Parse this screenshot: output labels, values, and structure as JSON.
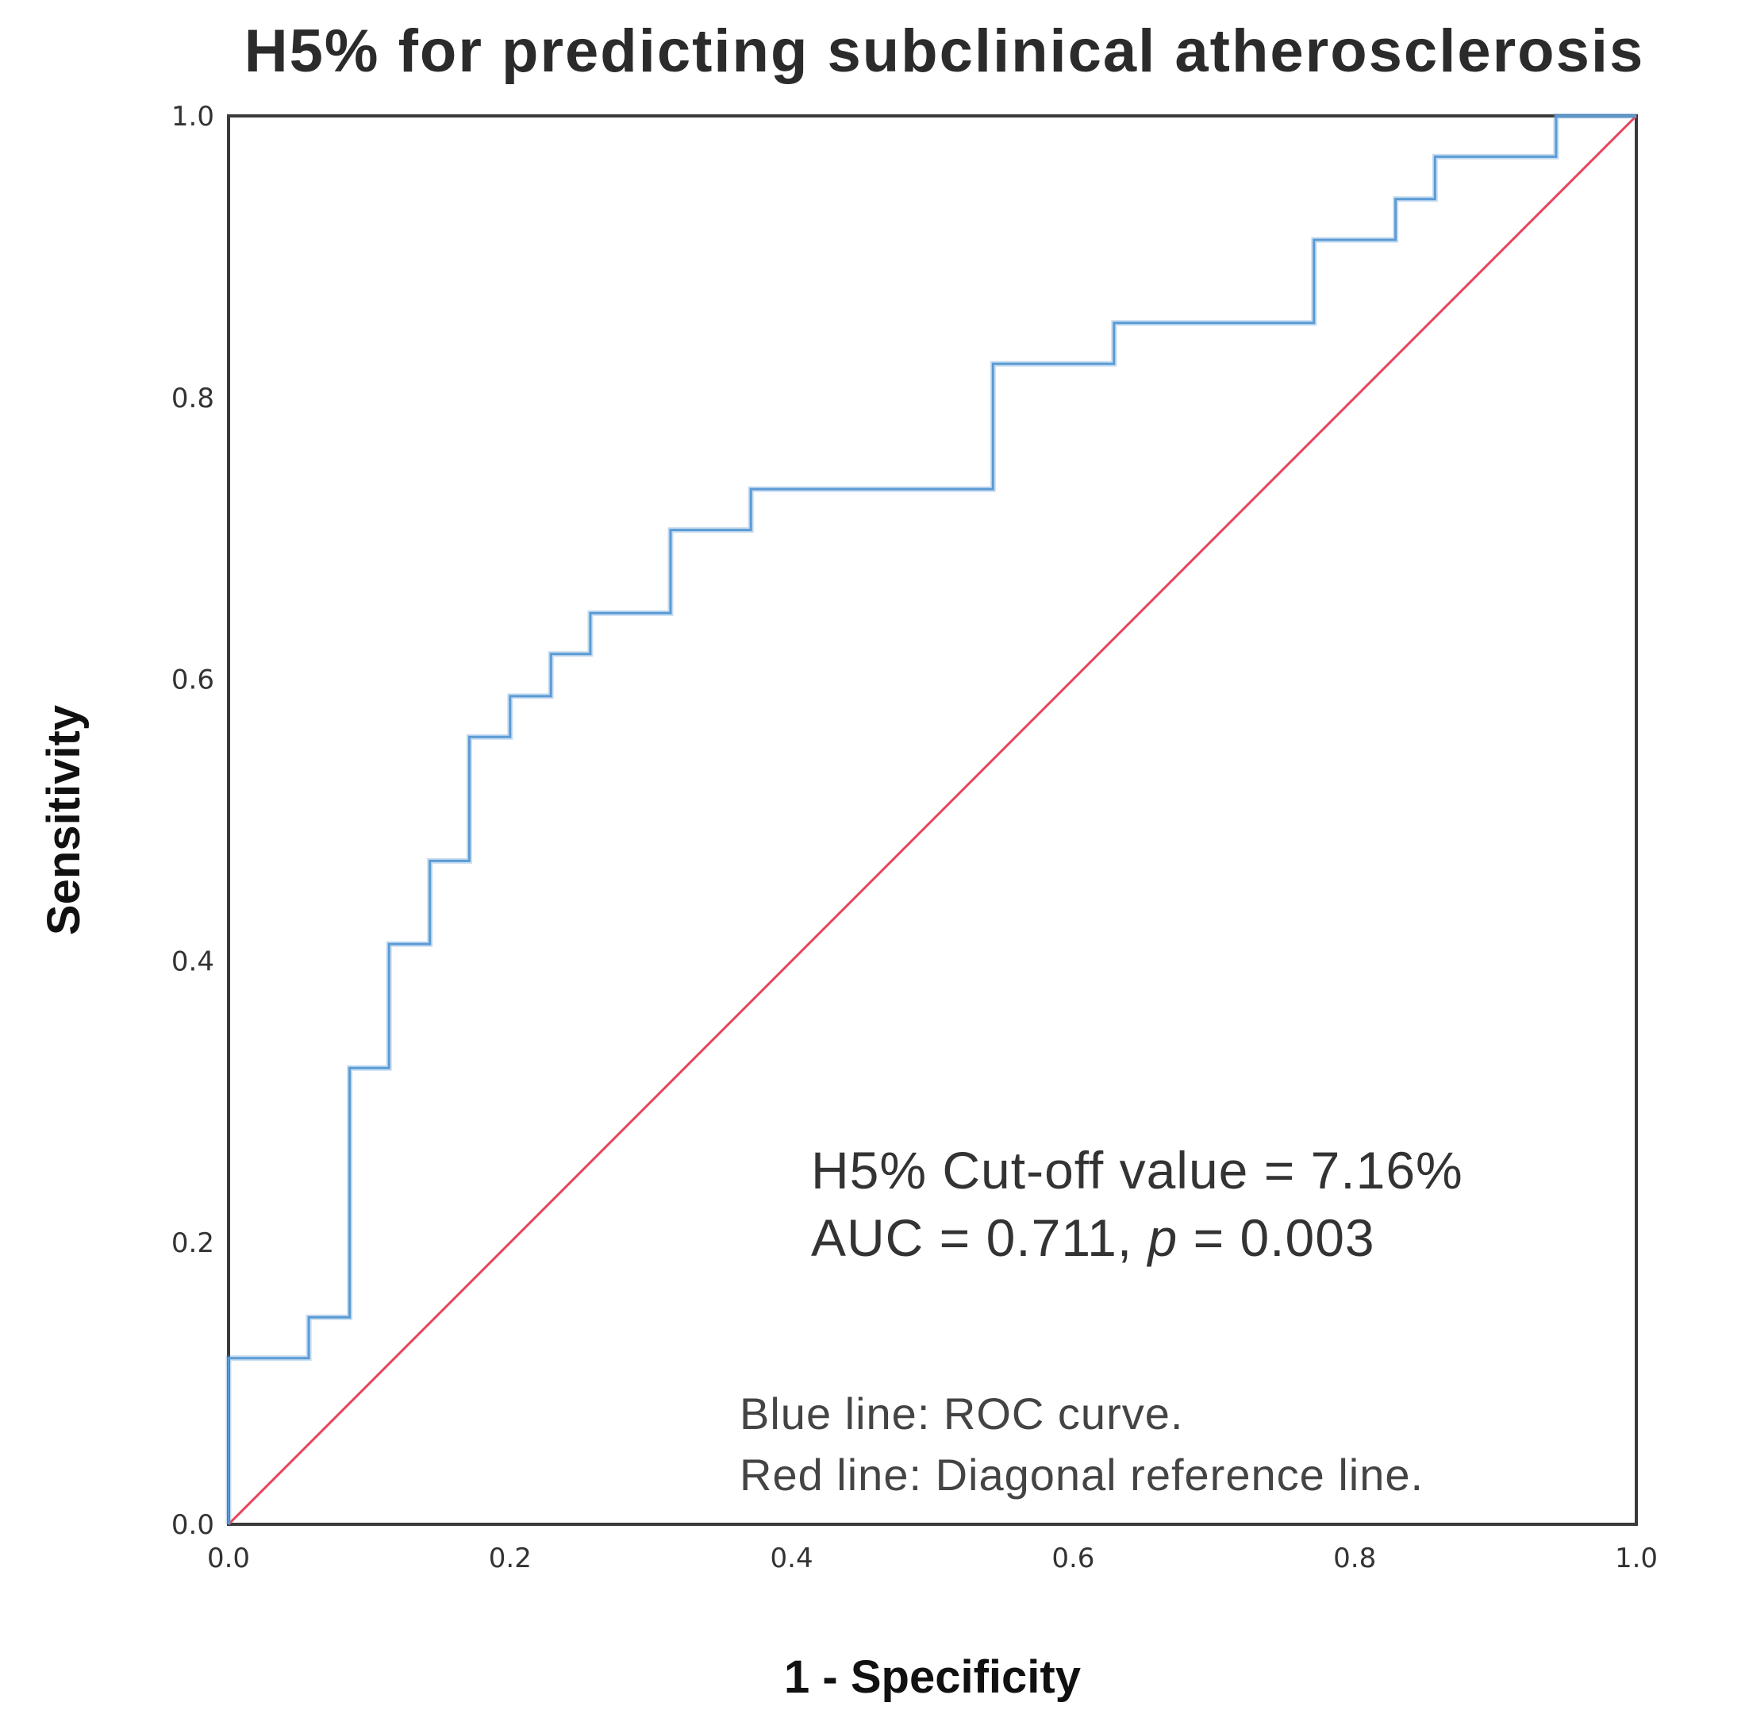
{
  "chart_data": {
    "type": "line",
    "title": "H5% for predicting subclinical atherosclerosis",
    "xlabel": "1 - Specificity",
    "ylabel": "Sensitivity",
    "xlim": [
      0.0,
      1.0
    ],
    "ylim": [
      0.0,
      1.0
    ],
    "xticks": [
      "0.0",
      "0.2",
      "0.4",
      "0.6",
      "0.8",
      "1.0"
    ],
    "yticks": [
      "0.0",
      "0.2",
      "0.4",
      "0.6",
      "0.8",
      "1.0"
    ],
    "grid": false,
    "series": [
      {
        "name": "ROC curve",
        "color": "#5b9bd5",
        "step": true,
        "x": [
          0.0,
          0.0,
          0.057,
          0.057,
          0.086,
          0.086,
          0.114,
          0.114,
          0.143,
          0.143,
          0.171,
          0.171,
          0.2,
          0.2,
          0.229,
          0.229,
          0.257,
          0.257,
          0.314,
          0.314,
          0.371,
          0.371,
          0.543,
          0.543,
          0.629,
          0.629,
          0.771,
          0.771,
          0.829,
          0.829,
          0.857,
          0.857,
          0.943,
          0.943,
          1.0
        ],
        "y": [
          0.0,
          0.118,
          0.118,
          0.147,
          0.147,
          0.324,
          0.324,
          0.412,
          0.412,
          0.471,
          0.471,
          0.559,
          0.559,
          0.588,
          0.588,
          0.618,
          0.618,
          0.647,
          0.647,
          0.706,
          0.706,
          0.735,
          0.735,
          0.824,
          0.824,
          0.853,
          0.853,
          0.912,
          0.912,
          0.941,
          0.941,
          0.971,
          0.971,
          1.0,
          1.0
        ]
      },
      {
        "name": "Diagonal reference line",
        "color": "#e8435c",
        "x": [
          0.0,
          1.0
        ],
        "y": [
          0.0,
          1.0
        ]
      }
    ],
    "annotations": {
      "cutoff": "H5% Cut-off value = 7.16%",
      "auc_prefix": "AUC = 0.711, ",
      "p_symbol": "p",
      "p_value": " = 0.003",
      "legend_blue": "Blue line: ROC curve.",
      "legend_red": "Red line: Diagonal reference line."
    }
  }
}
